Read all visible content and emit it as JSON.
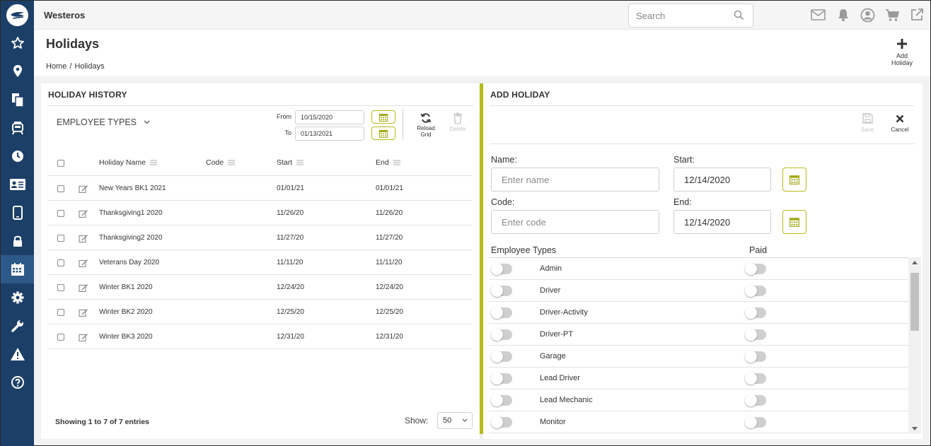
{
  "app": {
    "title": "Westeros"
  },
  "search": {
    "placeholder": "Search"
  },
  "sidebar": {
    "items": [
      {
        "icon": "star-icon"
      },
      {
        "icon": "map-pin-icon"
      },
      {
        "icon": "documents-icon"
      },
      {
        "icon": "bus-icon"
      },
      {
        "icon": "clock-icon"
      },
      {
        "icon": "id-card-icon"
      },
      {
        "icon": "tablet-icon"
      },
      {
        "icon": "lock-icon"
      },
      {
        "icon": "calendar-icon",
        "active": true
      },
      {
        "icon": "gear-icon"
      },
      {
        "icon": "wrench-icon"
      },
      {
        "icon": "warning-icon"
      },
      {
        "icon": "help-icon"
      }
    ]
  },
  "header": {
    "title": "Holidays",
    "breadcrumb": [
      "Home",
      "/",
      "Holidays"
    ],
    "add_button_line1": "Add",
    "add_button_line2": "Holiday"
  },
  "history": {
    "title": "HOLIDAY HISTORY",
    "employee_types_label": "EMPLOYEE TYPES",
    "from_label": "From",
    "from_value": "10/15/2020",
    "to_label": "To",
    "to_value": "01/13/2021",
    "reload_line1": "Reload",
    "reload_line2": "Grid",
    "delete_label": "Delete",
    "columns": {
      "name": "Holiday Name",
      "code": "Code",
      "start": "Start",
      "end": "End"
    },
    "rows": [
      {
        "name": "New Years BK1 2021",
        "code": "",
        "start": "01/01/21",
        "end": "01/01/21"
      },
      {
        "name": "Thanksgiving1 2020",
        "code": "",
        "start": "11/26/20",
        "end": "11/26/20"
      },
      {
        "name": "Thanksgiving2 2020",
        "code": "",
        "start": "11/27/20",
        "end": "11/27/20"
      },
      {
        "name": "Veterans Day 2020",
        "code": "",
        "start": "11/11/20",
        "end": "11/11/20"
      },
      {
        "name": "Winter BK1 2020",
        "code": "",
        "start": "12/24/20",
        "end": "12/24/20"
      },
      {
        "name": "Winter BK2 2020",
        "code": "",
        "start": "12/25/20",
        "end": "12/25/20"
      },
      {
        "name": "Winter BK3 2020",
        "code": "",
        "start": "12/31/20",
        "end": "12/31/20"
      }
    ],
    "entries_text": "Showing 1 to 7 of 7 entries",
    "show_label": "Show:",
    "show_value": "50"
  },
  "add": {
    "title": "ADD HOLIDAY",
    "save_label": "Save",
    "cancel_label": "Cancel",
    "name_label": "Name:",
    "name_placeholder": "Enter name",
    "start_label": "Start:",
    "start_value": "12/14/2020",
    "code_label": "Code:",
    "code_placeholder": "Enter code",
    "end_label": "End:",
    "end_value": "12/14/2020",
    "employee_types_label": "Employee Types",
    "paid_label": "Paid",
    "employee_types": [
      {
        "name": "Admin",
        "enabled": false,
        "paid": false
      },
      {
        "name": "Driver",
        "enabled": false,
        "paid": false
      },
      {
        "name": "Driver-Activity",
        "enabled": false,
        "paid": false
      },
      {
        "name": "Driver-PT",
        "enabled": false,
        "paid": false
      },
      {
        "name": "Garage",
        "enabled": false,
        "paid": false
      },
      {
        "name": "Lead Driver",
        "enabled": false,
        "paid": false
      },
      {
        "name": "Lead Mechanic",
        "enabled": false,
        "paid": false
      },
      {
        "name": "Monitor",
        "enabled": false,
        "paid": false
      }
    ]
  },
  "colors": {
    "sidebar": "#1c3f68",
    "accent": "#b6bc1a"
  }
}
